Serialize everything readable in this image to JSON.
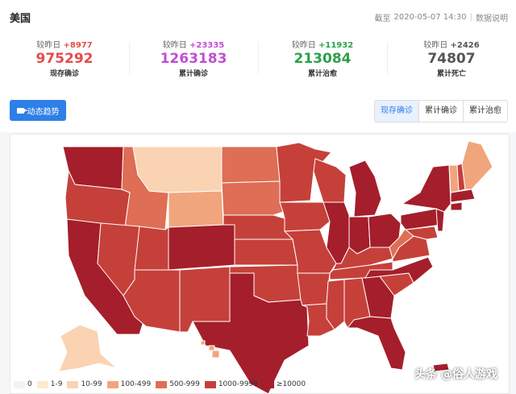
{
  "header": {
    "country": "美国",
    "date_prefix": "截至",
    "datetime": "2020-05-07 14:30",
    "separator": "|",
    "help_link": "数据说明",
    "help_icon": "question-circle-icon"
  },
  "stats": [
    {
      "cmp_label": "较昨日",
      "delta": "+8977",
      "value": "975292",
      "label": "现存确诊",
      "color": "#e44b4b"
    },
    {
      "cmp_label": "较昨日",
      "delta": "+23335",
      "value": "1263183",
      "label": "累计确诊",
      "color": "#c04fd2"
    },
    {
      "cmp_label": "较昨日",
      "delta": "+11932",
      "value": "213084",
      "label": "累计治愈",
      "color": "#2ca04c"
    },
    {
      "cmp_label": "较昨日",
      "delta": "+2426",
      "value": "74807",
      "label": "累计死亡",
      "color": "#555555"
    }
  ],
  "controls": {
    "trend_button": "动态趋势",
    "trend_icon": "video-camera-icon",
    "tabs": [
      {
        "label": "现存确诊",
        "active": true
      },
      {
        "label": "累计确诊",
        "active": false
      },
      {
        "label": "累计治愈",
        "active": false
      }
    ]
  },
  "legend": [
    {
      "label": "0",
      "color": "#f3f3f3"
    },
    {
      "label": "1-9",
      "color": "#fcebcd"
    },
    {
      "label": "10-99",
      "color": "#f9d3b2"
    },
    {
      "label": "100-499",
      "color": "#f1a57d"
    },
    {
      "label": "500-999",
      "color": "#de6e55"
    },
    {
      "label": "1000-9999",
      "color": "#c6403a"
    },
    {
      "label": "≥10000",
      "color": "#a51e2b"
    }
  ],
  "watermark": "头条 @俗人游戏"
}
